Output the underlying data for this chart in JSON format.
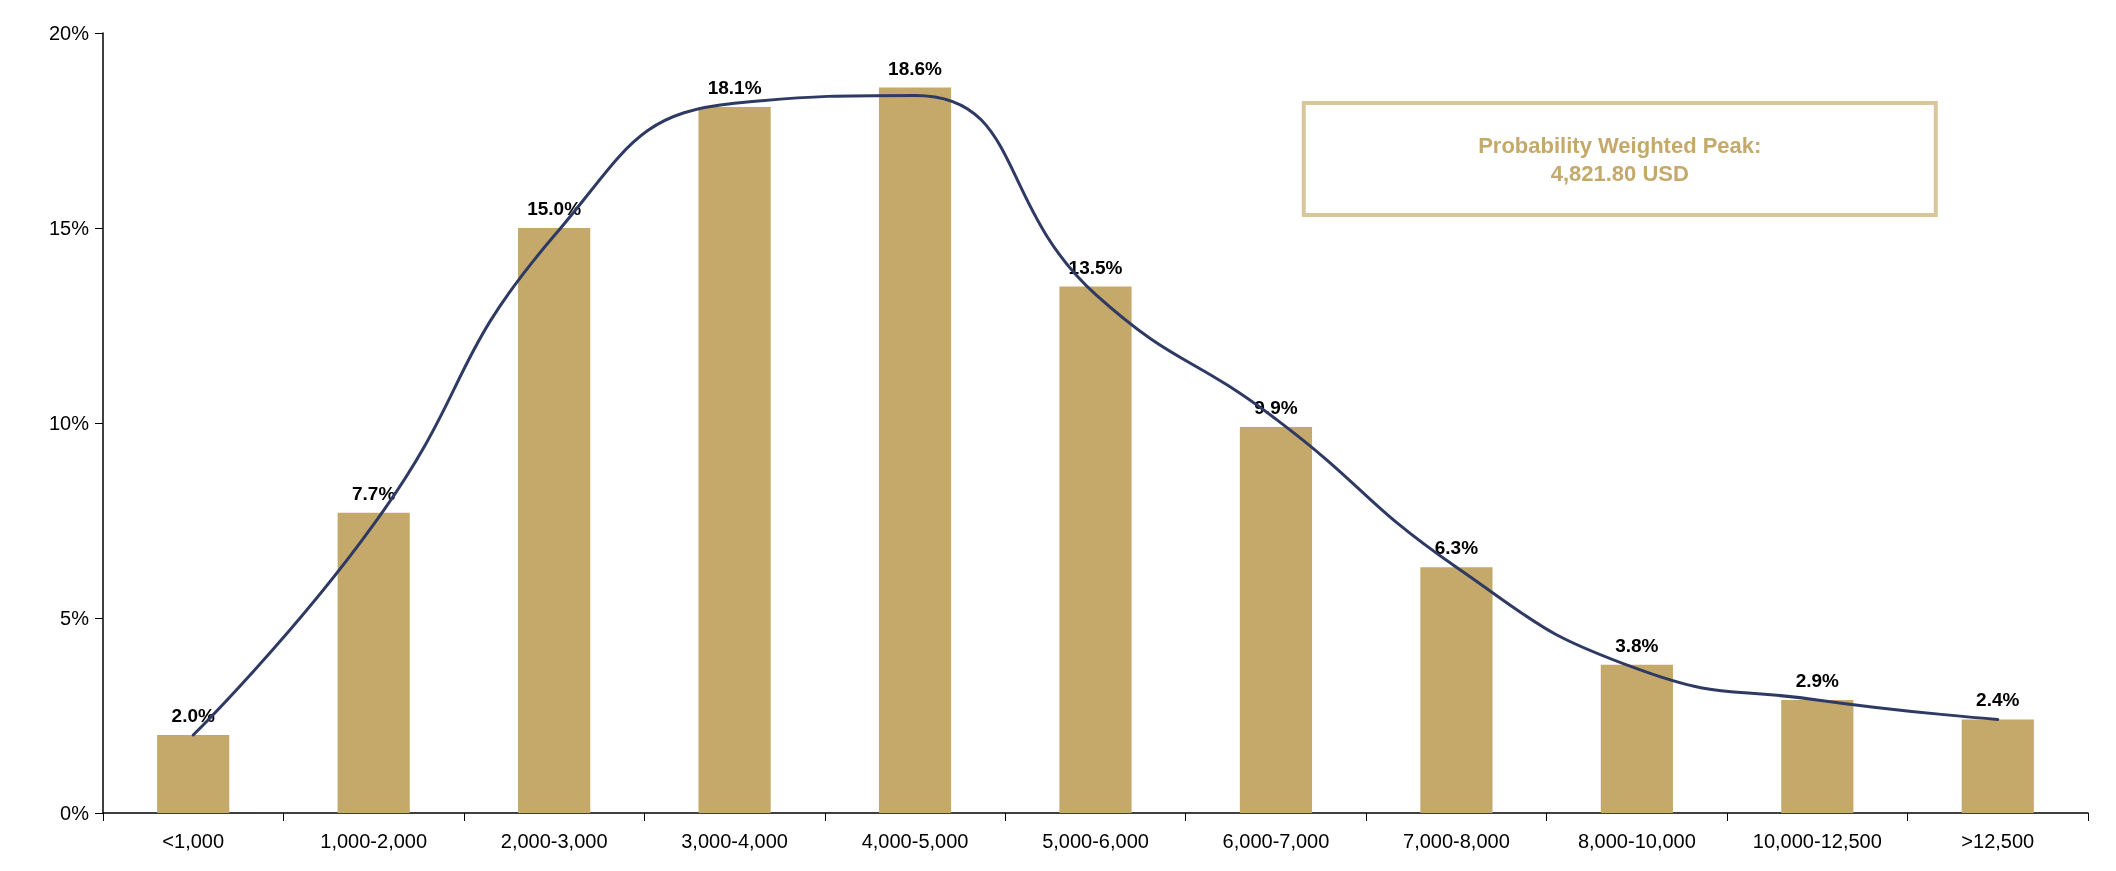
{
  "chart_data": {
    "type": "bar",
    "categories": [
      "<1,000",
      "1,000-2,000",
      "2,000-3,000",
      "3,000-4,000",
      "4,000-5,000",
      "5,000-6,000",
      "6,000-7,000",
      "7,000-8,000",
      "8,000-10,000",
      "10,000-12,500",
      ">12,500"
    ],
    "series": [
      {
        "color": "#c4a96a",
        "values": [
          2.0,
          7.7,
          15.0,
          18.1,
          18.6,
          13.5,
          9.9,
          6.3,
          3.8,
          2.9,
          2.4
        ],
        "value_labels": [
          "2.0%",
          "7.7%",
          "15.0%",
          "18.1%",
          "18.6%",
          "13.5%",
          "9.9%",
          "6.3%",
          "3.8%",
          "2.9%",
          "2.4%"
        ]
      },
      {
        "type": "line",
        "color": "#2e3a63",
        "values": [
          2.0,
          7.4,
          14.8,
          18.2,
          18.4,
          13.3,
          10.1,
          6.3,
          3.7,
          2.9,
          2.4
        ]
      }
    ],
    "ylim": [
      0,
      20
    ],
    "yticks": [
      {
        "value": 0,
        "label": "0%"
      },
      {
        "value": 5,
        "label": "5%"
      },
      {
        "value": 10,
        "label": "10%"
      },
      {
        "value": 15,
        "label": "15%"
      },
      {
        "value": 20,
        "label": "20%"
      }
    ],
    "annotations": [
      "Probability Weighted Peak:\n4,821.80 USD"
    ],
    "grid": false,
    "marker": "none",
    "line_style": "solid"
  }
}
